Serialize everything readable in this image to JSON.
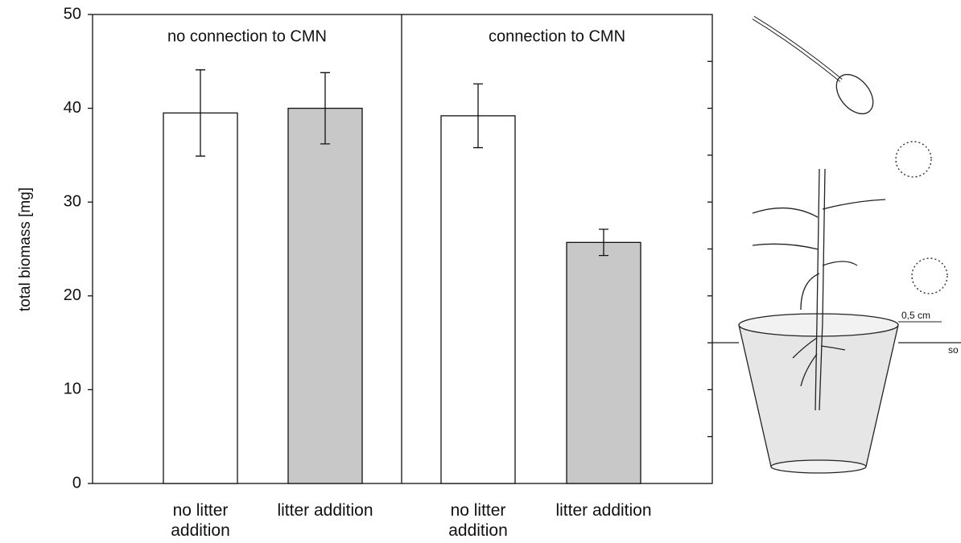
{
  "chart_data": {
    "type": "bar",
    "ylabel": "total biomass [mg]",
    "panels": [
      "no connection to CMN",
      "connection to CMN"
    ],
    "categories": [
      "no litter addition",
      "litter addition",
      "no litter addition",
      "litter addition"
    ],
    "values": [
      39.5,
      40,
      39.2,
      25.7
    ],
    "errors": [
      4.6,
      3.8,
      3.4,
      1.4
    ],
    "colors": [
      "#ffffff",
      "#c8c8c8",
      "#ffffff",
      "#c8c8c8"
    ],
    "ylim": [
      0,
      50
    ],
    "yticks": [
      0,
      10,
      20,
      30,
      40,
      50
    ],
    "right_ticks": [
      5,
      10,
      15,
      20,
      25,
      30,
      35,
      40,
      45
    ],
    "illustration_labels": [
      "0,5 cm",
      "so"
    ]
  }
}
